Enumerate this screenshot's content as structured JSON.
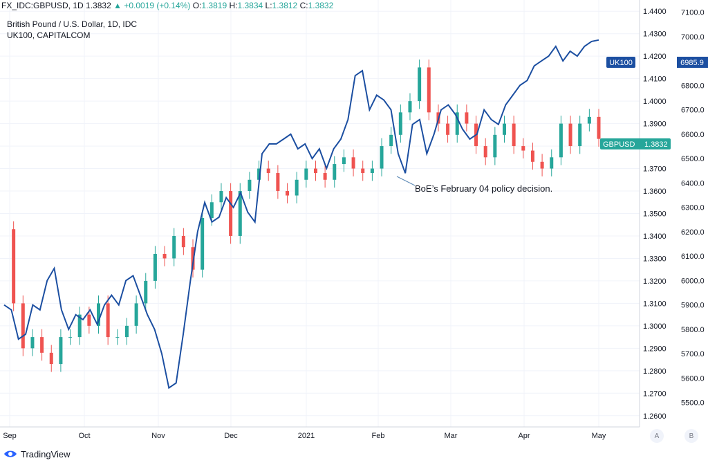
{
  "header": {
    "symbol": "FX_IDC:GBPUSD, 1D",
    "last": "1.3832",
    "change": "+0.0019 (+0.14%)",
    "o_label": "O:",
    "o": "1.3819",
    "h_label": "H:",
    "h": "1.3834",
    "l_label": "L:",
    "l": "1.3812",
    "c_label": "C:",
    "c": "1.3832"
  },
  "titles": {
    "main": "British Pound / U.S. Dollar, 1D, IDC",
    "overlay": "UK100, CAPITALCOM"
  },
  "footer": {
    "brand": "TradingView",
    "btn_a": "A",
    "btn_b": "B"
  },
  "colors": {
    "up": "#26a69a",
    "down": "#ef5350",
    "line": "#1c4fa1",
    "grid": "#f0f3fa",
    "axis": "#787b86"
  },
  "chart_data": {
    "type": "line",
    "x_ticks": [
      "Sep",
      "Oct",
      "Nov",
      "Dec",
      "2021",
      "Feb",
      "Mar",
      "Apr",
      "May"
    ],
    "y_right_ticks": [
      "1.4400",
      "1.4300",
      "1.4200",
      "1.4100",
      "1.4000",
      "1.3900",
      "1.3800",
      "1.3700",
      "1.3600",
      "1.3500",
      "1.3400",
      "1.3300",
      "1.3200",
      "1.3100",
      "1.3000",
      "1.2900",
      "1.2800",
      "1.2700",
      "1.2600"
    ],
    "y_left_ticks": [
      "7100.0",
      "7000.0",
      "6900.0",
      "6800.0",
      "6700.0",
      "6600.0",
      "6500.0",
      "6400.0",
      "6300.0",
      "6200.0",
      "6100.0",
      "6000.0",
      "5900.0",
      "5800.0",
      "5700.0",
      "5600.0",
      "5500.0"
    ],
    "ylim_gbpusd": [
      1.255,
      1.445
    ],
    "ylim_uk100": [
      5400,
      7150
    ],
    "series": [
      {
        "name": "UK100",
        "last_label": "6985.9",
        "values": [
          5900,
          5880,
          5760,
          5780,
          5900,
          5880,
          6000,
          6050,
          5880,
          5800,
          5860,
          5840,
          5880,
          5820,
          5900,
          5940,
          5900,
          6000,
          6020,
          5940,
          5860,
          5800,
          5700,
          5560,
          5580,
          5780,
          6000,
          6200,
          6320,
          6240,
          6260,
          6340,
          6300,
          6360,
          6280,
          6240,
          6520,
          6560,
          6560,
          6580,
          6600,
          6540,
          6560,
          6500,
          6540,
          6460,
          6540,
          6580,
          6660,
          6840,
          6860,
          6700,
          6760,
          6740,
          6700,
          6520,
          6440,
          6640,
          6660,
          6520,
          6600,
          6700,
          6720,
          6680,
          6620,
          6580,
          6600,
          6700,
          6660,
          6640,
          6720,
          6760,
          6800,
          6820,
          6880,
          6900,
          6920,
          6960,
          6900,
          6940,
          6920,
          6960,
          6980,
          6986
        ]
      },
      {
        "name": "GBPUSD",
        "last_label": "1.3832",
        "values": [
          1.343,
          1.31,
          1.29,
          1.295,
          1.288,
          1.283,
          1.295,
          1.295,
          1.305,
          1.3,
          1.31,
          1.295,
          1.295,
          1.3,
          1.31,
          1.32,
          1.332,
          1.33,
          1.34,
          1.335,
          1.325,
          1.348,
          1.355,
          1.36,
          1.34,
          1.36,
          1.365,
          1.37,
          1.368,
          1.36,
          1.358,
          1.365,
          1.37,
          1.368,
          1.365,
          1.372,
          1.375,
          1.37,
          1.368,
          1.37,
          1.38,
          1.385,
          1.395,
          1.4,
          1.415,
          1.395,
          1.39,
          1.385,
          1.395,
          1.39,
          1.38,
          1.375,
          1.385,
          1.39,
          1.38,
          1.378,
          1.373,
          1.37,
          1.375,
          1.39,
          1.38,
          1.39,
          1.393,
          1.3832
        ]
      }
    ],
    "annotation": "BoE’s February 04 policy decision."
  }
}
